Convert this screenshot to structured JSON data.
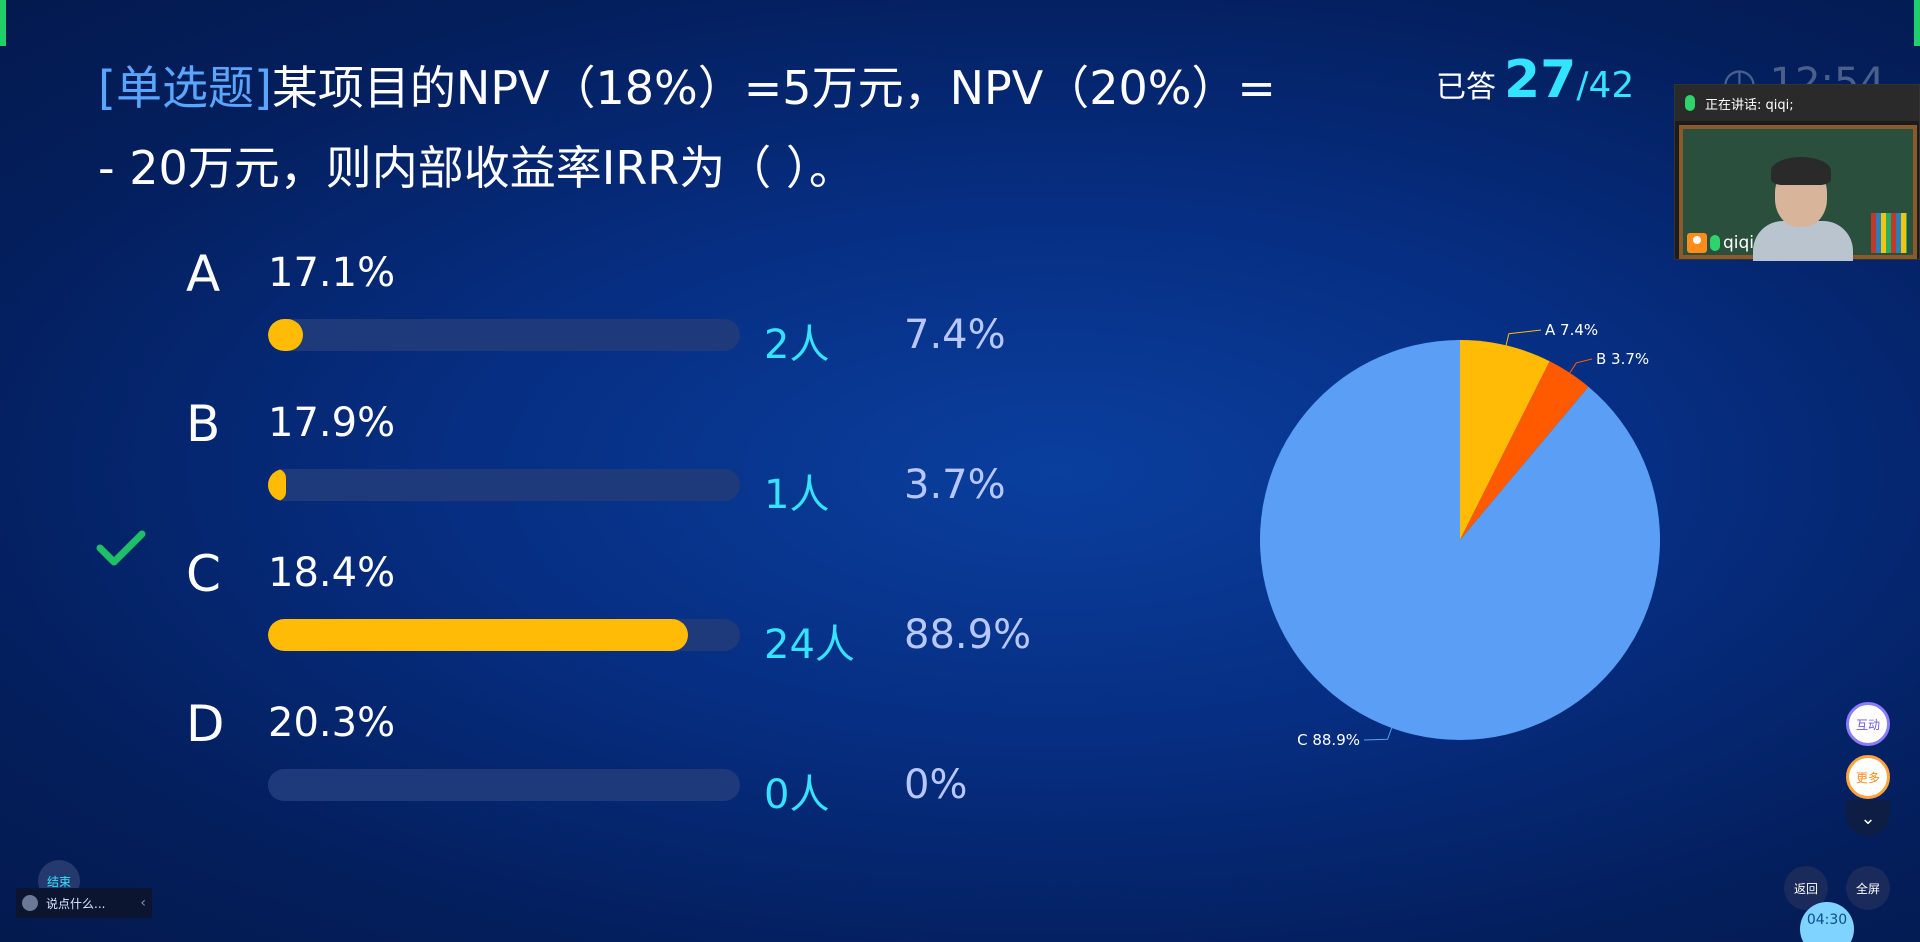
{
  "question": {
    "type_label": "[单选题]",
    "text": "某项目的NPV（18%）=5万元，NPV（20%）= - 20万元，则内部收益率IRR为（ ）。"
  },
  "answered": {
    "label": "已答",
    "count": "27",
    "total": "/42"
  },
  "clock": {
    "text": "12:54"
  },
  "options": [
    {
      "letter": "A",
      "text": "17.1%",
      "count": "2人",
      "percent": "7.4%",
      "fraction": 0.074,
      "correct": false
    },
    {
      "letter": "B",
      "text": "17.9%",
      "count": "1人",
      "percent": "3.7%",
      "fraction": 0.037,
      "correct": false
    },
    {
      "letter": "C",
      "text": "18.4%",
      "count": "24人",
      "percent": "88.9%",
      "fraction": 0.889,
      "correct": true
    },
    {
      "letter": "D",
      "text": "20.3%",
      "count": "0人",
      "percent": "0%",
      "fraction": 0.0,
      "correct": false
    }
  ],
  "chart_data": {
    "type": "pie",
    "title": "",
    "slices": [
      {
        "label": "A 7.4%",
        "value": 7.4,
        "color": "#ffbb05"
      },
      {
        "label": "B 3.7%",
        "value": 3.7,
        "color": "#ff5a00"
      },
      {
        "label": "C 88.9%",
        "value": 88.9,
        "color": "#5a9ff5"
      }
    ]
  },
  "video": {
    "speaking_label": "正在讲话: qiqi;",
    "speaker_name": "qiqi"
  },
  "controls": {
    "interact_label": "互动",
    "more_label": "更多",
    "collapse_icon": "chevron-down-icon",
    "back_label": "返回",
    "fullscreen_label": "全屏",
    "timer": "04:30",
    "end_label": "结束",
    "chat_placeholder": "说点什么..."
  },
  "colors": {
    "bar_fill": "#ffbb05",
    "accent_cyan": "#33e3ff",
    "check_green": "#1fbf6a"
  }
}
